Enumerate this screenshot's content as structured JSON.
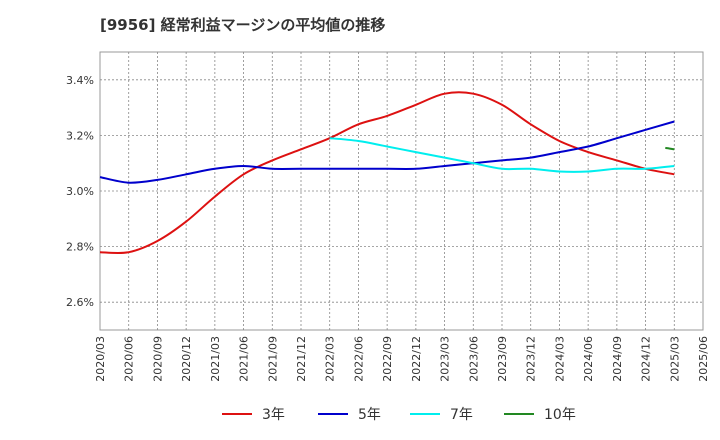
{
  "chart_data": {
    "type": "line",
    "title": "[9956]  経常利益マージンの平均値の推移",
    "xlabel": "",
    "ylabel": "",
    "x": [
      "2020/03",
      "2020/06",
      "2020/09",
      "2020/12",
      "2021/03",
      "2021/06",
      "2021/09",
      "2021/12",
      "2022/03",
      "2022/06",
      "2022/09",
      "2022/12",
      "2023/03",
      "2023/06",
      "2023/09",
      "2023/12",
      "2024/03",
      "2024/06",
      "2024/09",
      "2024/12",
      "2025/03",
      "2025/06"
    ],
    "ylim": [
      2.5,
      3.5
    ],
    "yticks": [
      2.6,
      2.8,
      3.0,
      3.2,
      3.4
    ],
    "ytick_labels": [
      "2.6%",
      "2.8%",
      "3.0%",
      "3.2%",
      "3.4%"
    ],
    "grid": true,
    "legend_position": "bottom",
    "series": [
      {
        "name": "3年",
        "color": "#dd1111",
        "values": [
          2.78,
          2.78,
          2.82,
          2.89,
          2.98,
          3.06,
          3.11,
          3.15,
          3.19,
          3.24,
          3.27,
          3.31,
          3.35,
          3.35,
          3.31,
          3.24,
          3.18,
          3.14,
          3.11,
          3.08,
          3.06,
          null
        ]
      },
      {
        "name": "5年",
        "color": "#0000cc",
        "values": [
          3.05,
          3.03,
          3.04,
          3.06,
          3.08,
          3.09,
          3.08,
          3.08,
          3.08,
          3.08,
          3.08,
          3.08,
          3.09,
          3.1,
          3.11,
          3.12,
          3.14,
          3.16,
          3.19,
          3.22,
          3.25,
          null
        ]
      },
      {
        "name": "7年",
        "color": "#00eeee",
        "values": [
          null,
          null,
          null,
          null,
          null,
          null,
          null,
          null,
          3.19,
          3.18,
          3.16,
          3.14,
          3.12,
          3.1,
          3.08,
          3.08,
          3.07,
          3.07,
          3.08,
          3.08,
          3.09,
          null
        ]
      },
      {
        "name": "10年",
        "color": "#228822",
        "values": [
          null,
          null,
          null,
          null,
          null,
          null,
          null,
          null,
          null,
          null,
          null,
          null,
          null,
          null,
          null,
          null,
          null,
          null,
          null,
          null,
          3.15,
          null
        ]
      }
    ]
  }
}
